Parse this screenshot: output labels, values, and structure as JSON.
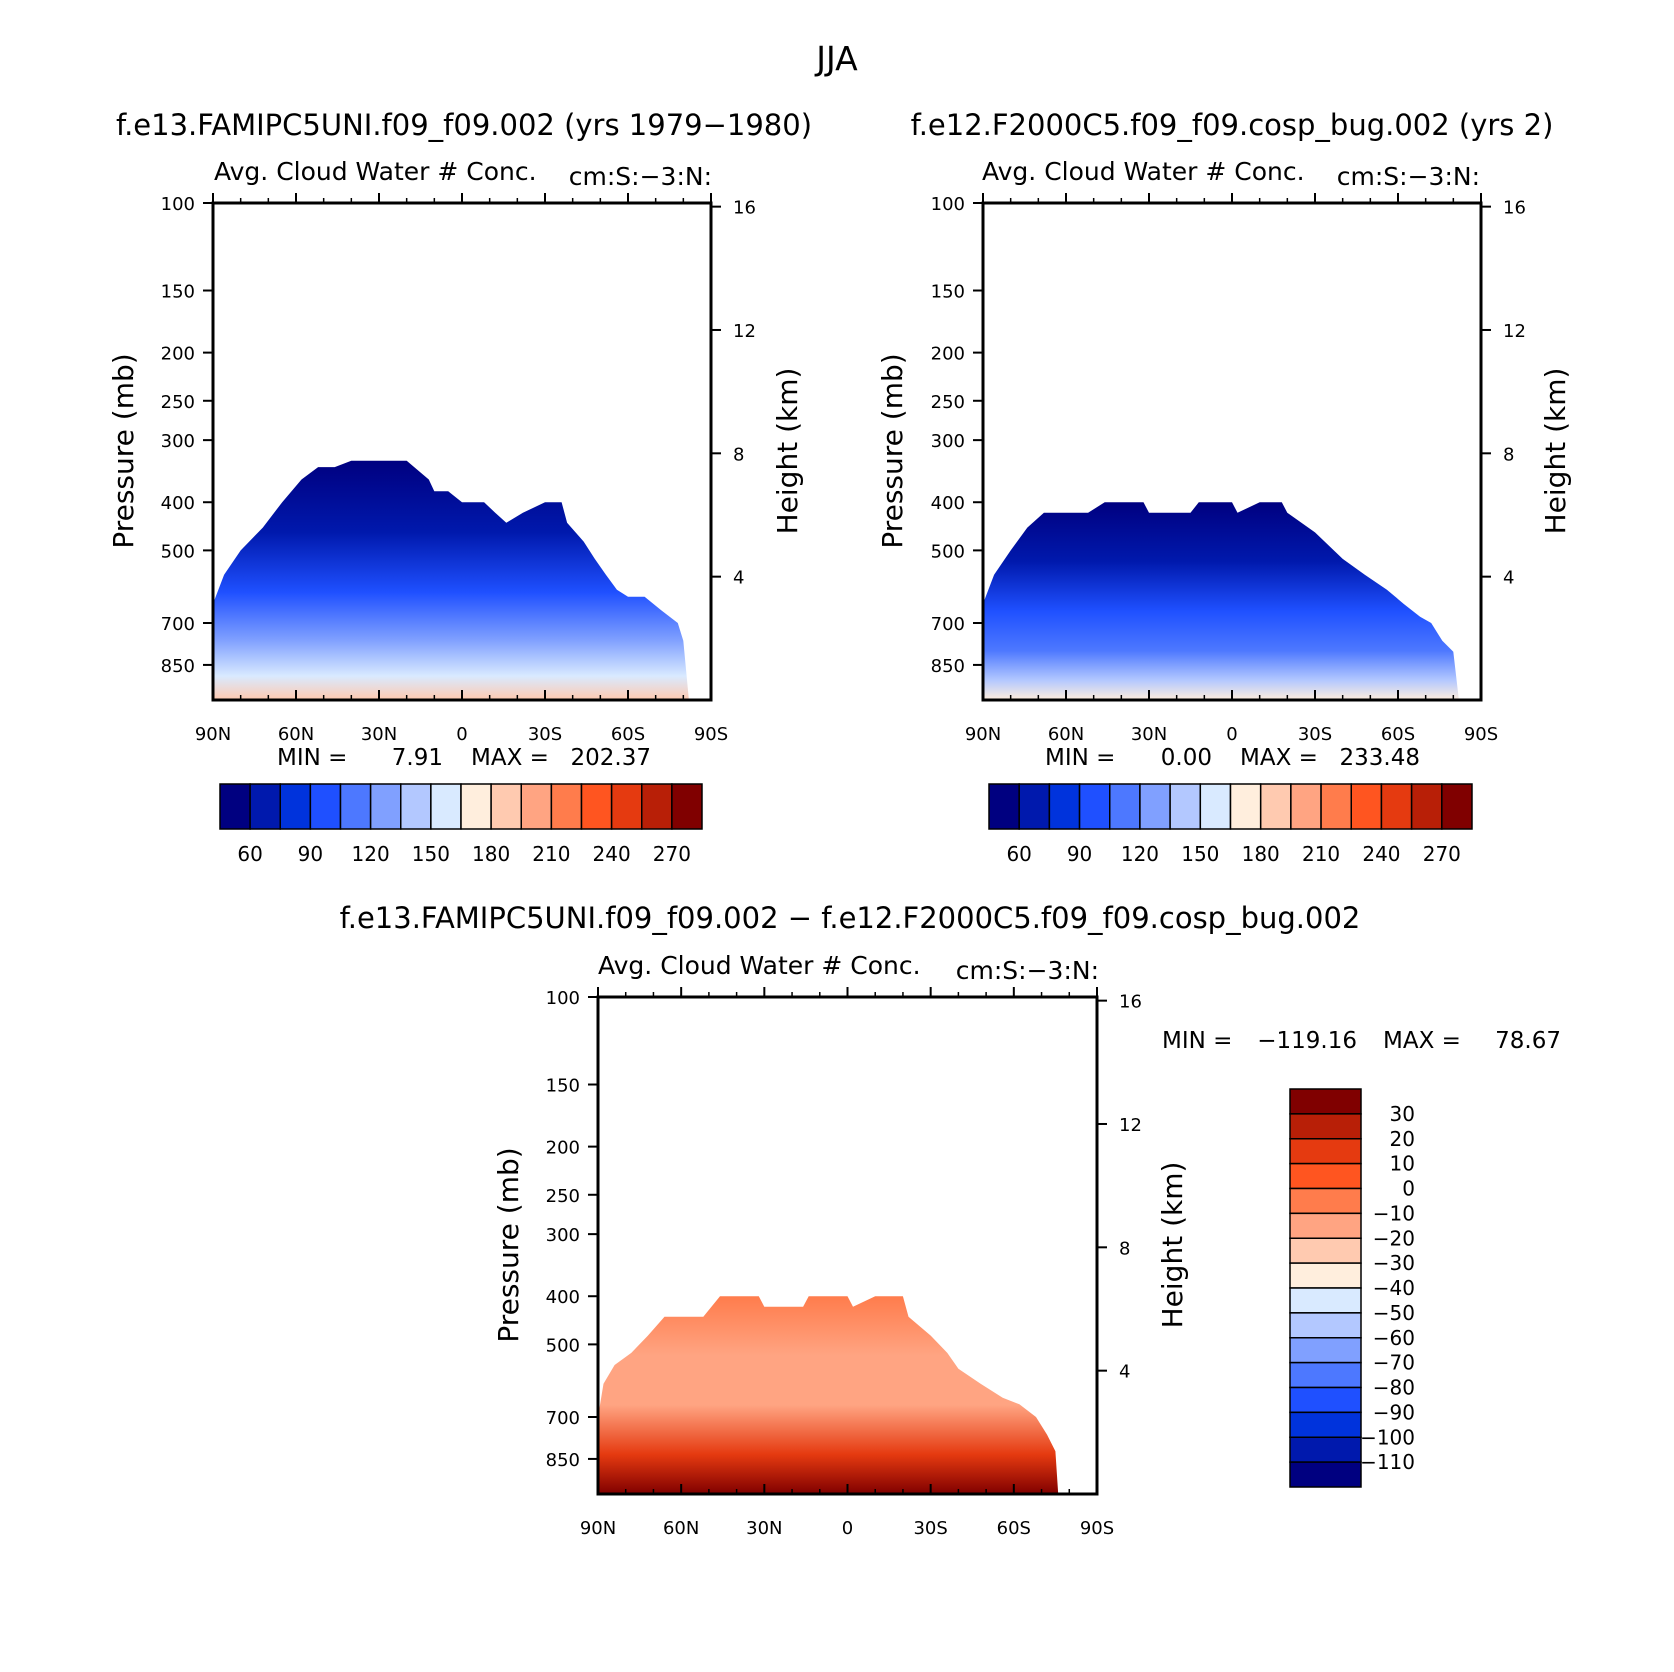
{
  "title": "JJA",
  "colors": {
    "scale": [
      "#000080",
      "#0019ad",
      "#0033dc",
      "#1f50ff",
      "#4d78ff",
      "#80a0ff",
      "#b3c8ff",
      "#d9eaff",
      "#ffeedd",
      "#ffcab0",
      "#ffa482",
      "#ff7c4c",
      "#ff5520",
      "#e53a10",
      "#b81f07",
      "#800000"
    ]
  },
  "chart_data": [
    {
      "type": "heatmap",
      "id": "top-left",
      "case_title": "f.e13.FAMIPC5UNI.f09_f09.002 (yrs 1979-1980)",
      "subtitle_left": "Avg. Cloud Water # Conc.",
      "subtitle_right": "cm:S:-3:N:",
      "ylabel": "Pressure (mb)",
      "ylabel_right": "Height (km)",
      "x_ticks": [
        "90N",
        "60N",
        "30N",
        "0",
        "30S",
        "60S",
        "90S"
      ],
      "x_values": [
        90,
        60,
        30,
        0,
        -30,
        -60,
        -90
      ],
      "xlim": [
        90,
        -90
      ],
      "y_ticks": [
        "100",
        "150",
        "200",
        "250",
        "300",
        "400",
        "500",
        "700",
        "850"
      ],
      "y_values": [
        100,
        150,
        200,
        250,
        300,
        400,
        500,
        700,
        850
      ],
      "ylim": [
        100,
        1000
      ],
      "y2_ticks": [
        "16",
        "12",
        "8",
        "4"
      ],
      "y2_values": [
        16,
        12,
        8,
        4
      ],
      "min_label": "MIN =",
      "min_value": "7.91",
      "max_label": "MAX =",
      "max_value": "202.37",
      "colorbar_labels": [
        "60",
        "90",
        "120",
        "150",
        "180",
        "210",
        "240",
        "270"
      ],
      "data_extent": [
        [
          90,
          640
        ],
        [
          86,
          560
        ],
        [
          80,
          500
        ],
        [
          72,
          450
        ],
        [
          65,
          400
        ],
        [
          58,
          360
        ],
        [
          52,
          340
        ],
        [
          46,
          340
        ],
        [
          40,
          330
        ],
        [
          20,
          330
        ],
        [
          12,
          360
        ],
        [
          10,
          380
        ],
        [
          5,
          380
        ],
        [
          0,
          400
        ],
        [
          -8,
          400
        ],
        [
          -12,
          420
        ],
        [
          -16,
          440
        ],
        [
          -22,
          420
        ],
        [
          -30,
          400
        ],
        [
          -36,
          400
        ],
        [
          -38,
          440
        ],
        [
          -44,
          480
        ],
        [
          -48,
          520
        ],
        [
          -52,
          560
        ],
        [
          -56,
          600
        ],
        [
          -60,
          620
        ],
        [
          -66,
          620
        ],
        [
          -72,
          660
        ],
        [
          -78,
          700
        ],
        [
          -80,
          760
        ],
        [
          -82,
          1000
        ],
        [
          90,
          1000
        ]
      ]
    },
    {
      "type": "heatmap",
      "id": "top-right",
      "case_title": "f.e12.F2000C5.f09_f09.cosp_bug.002 (yrs 2)",
      "subtitle_left": "Avg. Cloud Water # Conc.",
      "subtitle_right": "cm:S:-3:N:",
      "ylabel": "Pressure (mb)",
      "ylabel_right": "Height (km)",
      "x_ticks": [
        "90N",
        "60N",
        "30N",
        "0",
        "30S",
        "60S",
        "90S"
      ],
      "x_values": [
        90,
        60,
        30,
        0,
        -30,
        -60,
        -90
      ],
      "xlim": [
        90,
        -90
      ],
      "y_ticks": [
        "100",
        "150",
        "200",
        "250",
        "300",
        "400",
        "500",
        "700",
        "850"
      ],
      "y_values": [
        100,
        150,
        200,
        250,
        300,
        400,
        500,
        700,
        850
      ],
      "ylim": [
        100,
        1000
      ],
      "y2_ticks": [
        "16",
        "12",
        "8",
        "4"
      ],
      "y2_values": [
        16,
        12,
        8,
        4
      ],
      "min_label": "MIN =",
      "min_value": "0.00",
      "max_label": "MAX =",
      "max_value": "233.48",
      "colorbar_labels": [
        "60",
        "90",
        "120",
        "150",
        "180",
        "210",
        "240",
        "270"
      ],
      "data_extent": [
        [
          90,
          640
        ],
        [
          86,
          560
        ],
        [
          80,
          500
        ],
        [
          74,
          450
        ],
        [
          68,
          420
        ],
        [
          52,
          420
        ],
        [
          46,
          400
        ],
        [
          32,
          400
        ],
        [
          30,
          420
        ],
        [
          15,
          420
        ],
        [
          12,
          400
        ],
        [
          6,
          400
        ],
        [
          0,
          400
        ],
        [
          -2,
          420
        ],
        [
          -10,
          400
        ],
        [
          -18,
          400
        ],
        [
          -20,
          420
        ],
        [
          -30,
          460
        ],
        [
          -40,
          520
        ],
        [
          -48,
          560
        ],
        [
          -56,
          600
        ],
        [
          -62,
          640
        ],
        [
          -68,
          680
        ],
        [
          -72,
          700
        ],
        [
          -76,
          760
        ],
        [
          -80,
          800
        ],
        [
          -82,
          1000
        ],
        [
          90,
          1000
        ]
      ]
    },
    {
      "type": "heatmap",
      "id": "bottom-diff",
      "case_title": "f.e13.FAMIPC5UNI.f09_f09.002 - f.e12.F2000C5.f09_f09.cosp_bug.002",
      "subtitle_left": "Avg. Cloud Water # Conc.",
      "subtitle_right": "cm:S:-3:N:",
      "ylabel": "Pressure (mb)",
      "ylabel_right": "Height (km)",
      "x_ticks": [
        "90N",
        "60N",
        "30N",
        "0",
        "30S",
        "60S",
        "90S"
      ],
      "x_values": [
        90,
        60,
        30,
        0,
        -30,
        -60,
        -90
      ],
      "xlim": [
        90,
        -90
      ],
      "y_ticks": [
        "100",
        "150",
        "200",
        "250",
        "300",
        "400",
        "500",
        "700",
        "850"
      ],
      "y_values": [
        100,
        150,
        200,
        250,
        300,
        400,
        500,
        700,
        850
      ],
      "ylim": [
        100,
        1000
      ],
      "y2_ticks": [
        "16",
        "12",
        "8",
        "4"
      ],
      "y2_values": [
        16,
        12,
        8,
        4
      ],
      "min_label": "MIN =",
      "min_value": "-119.16",
      "max_label": "MAX =",
      "max_value": "78.67",
      "colorbar_labels": [
        "30",
        "20",
        "10",
        "0",
        "-10",
        "-20",
        "-30",
        "-40",
        "-50",
        "-60",
        "-70",
        "-80",
        "-90",
        "-100",
        "-110"
      ],
      "data_extent": [
        [
          90,
          700
        ],
        [
          88,
          600
        ],
        [
          84,
          550
        ],
        [
          78,
          520
        ],
        [
          72,
          480
        ],
        [
          66,
          440
        ],
        [
          52,
          440
        ],
        [
          46,
          400
        ],
        [
          32,
          400
        ],
        [
          30,
          420
        ],
        [
          16,
          420
        ],
        [
          14,
          400
        ],
        [
          5,
          400
        ],
        [
          0,
          400
        ],
        [
          -2,
          420
        ],
        [
          -10,
          400
        ],
        [
          -20,
          400
        ],
        [
          -22,
          440
        ],
        [
          -30,
          480
        ],
        [
          -36,
          520
        ],
        [
          -40,
          560
        ],
        [
          -48,
          600
        ],
        [
          -56,
          640
        ],
        [
          -62,
          660
        ],
        [
          -68,
          700
        ],
        [
          -72,
          760
        ],
        [
          -75,
          820
        ],
        [
          -76,
          1000
        ],
        [
          90,
          1000
        ]
      ]
    }
  ]
}
